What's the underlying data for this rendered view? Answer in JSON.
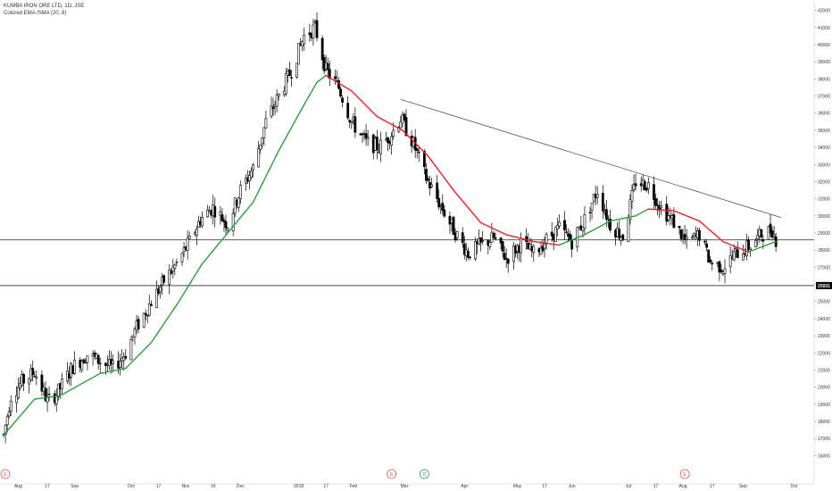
{
  "header": {
    "symbol_line": "KUMBA IRON ORE LTD, 1D, JSE",
    "indicator_line": "Colored EMA /SMA (20, 8)"
  },
  "price_label": "25931",
  "colors": {
    "ema_up": "#2e9d3a",
    "ema_down": "#e8222b",
    "candle": "#000000",
    "trendline": "#555555",
    "hline": "#444444",
    "price_badge_bg": "#000000",
    "price_badge_fg": "#ffffff",
    "event_e": "#e05a5a",
    "event_d": "#3a9a5a"
  },
  "events": [
    {
      "label": "E",
      "date": "2017-07-22",
      "type": "earnings"
    },
    {
      "label": "E",
      "date": "2018-02-22",
      "type": "earnings"
    },
    {
      "label": "D",
      "date": "2018-03-12",
      "type": "dividend"
    },
    {
      "label": "E",
      "date": "2018-08-02",
      "type": "earnings"
    }
  ],
  "chart_data": {
    "type": "candlestick",
    "title": "KUMBA IRON ORE LTD, 1D, JSE",
    "x_range": [
      "2017-07-22",
      "2018-10-12"
    ],
    "ylim": [
      15500,
      42500
    ],
    "y_ticks": [
      16000,
      17000,
      18000,
      19000,
      20000,
      21000,
      22000,
      23000,
      24000,
      25000,
      26000,
      27000,
      28000,
      29000,
      30000,
      31000,
      32000,
      33000,
      34000,
      35000,
      36000,
      37000,
      38000,
      39000,
      40000,
      41000,
      42000
    ],
    "x_ticks": [
      {
        "label": "Aug",
        "date": "2017-08-01"
      },
      {
        "label": "17",
        "date": "2017-08-17"
      },
      {
        "label": "Sep",
        "date": "2017-09-01"
      },
      {
        "label": "Oct",
        "date": "2017-10-02"
      },
      {
        "label": "17",
        "date": "2017-10-17"
      },
      {
        "label": "Nov",
        "date": "2017-11-01"
      },
      {
        "label": "16",
        "date": "2017-11-16"
      },
      {
        "label": "Dec",
        "date": "2017-12-01"
      },
      {
        "label": "2018",
        "date": "2018-01-02"
      },
      {
        "label": "17",
        "date": "2018-01-17"
      },
      {
        "label": "Feb",
        "date": "2018-02-01"
      },
      {
        "label": "Mar",
        "date": "2018-03-01"
      },
      {
        "label": "Apr",
        "date": "2018-04-03"
      },
      {
        "label": "May",
        "date": "2018-05-02"
      },
      {
        "label": "17",
        "date": "2018-05-17"
      },
      {
        "label": "Jun",
        "date": "2018-06-01"
      },
      {
        "label": "Jul",
        "date": "2018-07-02"
      },
      {
        "label": "17",
        "date": "2018-07-17"
      },
      {
        "label": "Aug",
        "date": "2018-08-01"
      },
      {
        "label": "17",
        "date": "2018-08-17"
      },
      {
        "label": "Sep",
        "date": "2018-09-03"
      },
      {
        "label": "Oct",
        "date": "2018-10-01"
      }
    ],
    "price_anchors": [
      [
        "2017-07-24",
        17200
      ],
      [
        "2017-07-28",
        19500
      ],
      [
        "2017-08-03",
        20300
      ],
      [
        "2017-08-10",
        20900
      ],
      [
        "2017-08-17",
        19200
      ],
      [
        "2017-08-22",
        19600
      ],
      [
        "2017-08-31",
        21200
      ],
      [
        "2017-09-08",
        21900
      ],
      [
        "2017-09-15",
        21500
      ],
      [
        "2017-09-22",
        21100
      ],
      [
        "2017-09-29",
        22000
      ],
      [
        "2017-10-05",
        23500
      ],
      [
        "2017-10-13",
        25000
      ],
      [
        "2017-10-20",
        26200
      ],
      [
        "2017-10-27",
        27200
      ],
      [
        "2017-11-03",
        28500
      ],
      [
        "2017-11-09",
        29800
      ],
      [
        "2017-11-16",
        30500
      ],
      [
        "2017-11-24",
        29500
      ],
      [
        "2017-12-01",
        31500
      ],
      [
        "2017-12-08",
        32800
      ],
      [
        "2017-12-15",
        35500
      ],
      [
        "2017-12-22",
        37000
      ],
      [
        "2017-12-29",
        38500
      ],
      [
        "2018-01-05",
        40500
      ],
      [
        "2018-01-11",
        41000
      ],
      [
        "2018-01-17",
        38500
      ],
      [
        "2018-01-24",
        37500
      ],
      [
        "2018-01-31",
        35500
      ],
      [
        "2018-02-08",
        34300
      ],
      [
        "2018-02-15",
        34000
      ],
      [
        "2018-02-22",
        34800
      ],
      [
        "2018-02-27",
        35700
      ],
      [
        "2018-03-06",
        34200
      ],
      [
        "2018-03-13",
        32200
      ],
      [
        "2018-03-20",
        30800
      ],
      [
        "2018-03-28",
        29200
      ],
      [
        "2018-04-05",
        27800
      ],
      [
        "2018-04-12",
        28300
      ],
      [
        "2018-04-19",
        28700
      ],
      [
        "2018-04-26",
        27500
      ],
      [
        "2018-05-04",
        28400
      ],
      [
        "2018-05-11",
        27800
      ],
      [
        "2018-05-18",
        28600
      ],
      [
        "2018-05-25",
        29300
      ],
      [
        "2018-06-01",
        28500
      ],
      [
        "2018-06-08",
        29800
      ],
      [
        "2018-06-15",
        31500
      ],
      [
        "2018-06-22",
        29500
      ],
      [
        "2018-06-29",
        28800
      ],
      [
        "2018-07-06",
        32000
      ],
      [
        "2018-07-13",
        31800
      ],
      [
        "2018-07-20",
        30500
      ],
      [
        "2018-07-27",
        29600
      ],
      [
        "2018-08-03",
        28400
      ],
      [
        "2018-08-10",
        28900
      ],
      [
        "2018-08-16",
        27300
      ],
      [
        "2018-08-23",
        27000
      ],
      [
        "2018-08-30",
        27800
      ],
      [
        "2018-09-06",
        28200
      ],
      [
        "2018-09-13",
        28900
      ],
      [
        "2018-09-19",
        29200
      ],
      [
        "2018-09-21",
        28600
      ]
    ],
    "ema": {
      "period": 20,
      "points": [
        [
          "2017-07-24",
          17200
        ],
        [
          "2017-08-10",
          19300
        ],
        [
          "2017-08-24",
          19500
        ],
        [
          "2017-09-15",
          20800
        ],
        [
          "2017-09-29",
          21100
        ],
        [
          "2017-10-13",
          22600
        ],
        [
          "2017-10-27",
          24800
        ],
        [
          "2017-11-10",
          27200
        ],
        [
          "2017-11-24",
          29000
        ],
        [
          "2017-12-08",
          30800
        ],
        [
          "2017-12-22",
          33800
        ],
        [
          "2018-01-05",
          36500
        ],
        [
          "2018-01-12",
          37800
        ],
        [
          "2018-01-17",
          38200
        ],
        [
          "2018-01-31",
          37300
        ],
        [
          "2018-02-14",
          35800
        ],
        [
          "2018-02-28",
          35000
        ],
        [
          "2018-03-14",
          33500
        ],
        [
          "2018-03-28",
          31500
        ],
        [
          "2018-04-12",
          29600
        ],
        [
          "2018-04-26",
          28900
        ],
        [
          "2018-05-11",
          28500
        ],
        [
          "2018-05-25",
          28300
        ],
        [
          "2018-06-08",
          28900
        ],
        [
          "2018-06-22",
          29700
        ],
        [
          "2018-07-06",
          30000
        ],
        [
          "2018-07-13",
          30400
        ],
        [
          "2018-07-27",
          30300
        ],
        [
          "2018-08-10",
          29700
        ],
        [
          "2018-08-23",
          28500
        ],
        [
          "2018-09-06",
          27900
        ],
        [
          "2018-09-21",
          28500
        ]
      ]
    },
    "trendline": {
      "start": [
        "2018-02-27",
        36800
      ],
      "end": [
        "2018-09-24",
        29900
      ]
    },
    "horizontal_lines": [
      28600,
      25931
    ]
  }
}
